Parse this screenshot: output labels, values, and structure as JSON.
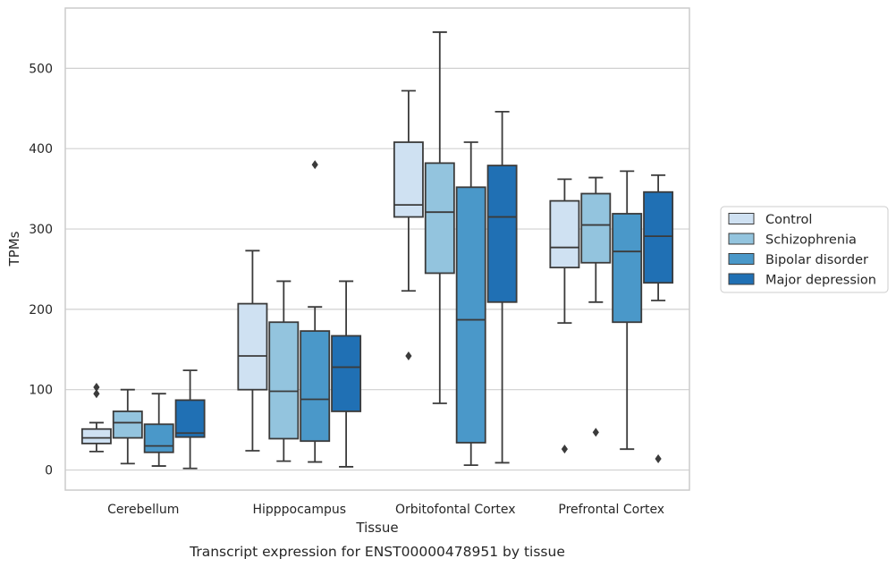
{
  "chart_data": {
    "type": "box",
    "xlabel": "Tissue",
    "ylabel": "TPMs",
    "caption": "Transcript expression for ENST00000478951 by tissue",
    "ylim": [
      -25,
      575
    ],
    "yticks": [
      0,
      100,
      200,
      300,
      400,
      500
    ],
    "grid": "horizontal",
    "legend_position": "right",
    "categories": [
      "Cerebellum",
      "Hipppocampus",
      "Orbitofontal Cortex",
      "Prefrontal Cortex"
    ],
    "series": [
      {
        "name": "Control",
        "color": "#cfe1f2",
        "boxes": [
          {
            "whislo": 23,
            "q1": 33,
            "med": 40,
            "q3": 51,
            "whishi": 59,
            "fliers": [
              95,
              103
            ]
          },
          {
            "whislo": 24,
            "q1": 100,
            "med": 142,
            "q3": 207,
            "whishi": 273,
            "fliers": []
          },
          {
            "whislo": 223,
            "q1": 315,
            "med": 330,
            "q3": 408,
            "whishi": 472,
            "fliers": [
              142
            ]
          },
          {
            "whislo": 183,
            "q1": 252,
            "med": 277,
            "q3": 335,
            "whishi": 362,
            "fliers": [
              26
            ]
          }
        ]
      },
      {
        "name": "Schizophrenia",
        "color": "#93c4de",
        "boxes": [
          {
            "whislo": 8,
            "q1": 40,
            "med": 59,
            "q3": 73,
            "whishi": 100,
            "fliers": []
          },
          {
            "whislo": 11,
            "q1": 39,
            "med": 98,
            "q3": 184,
            "whishi": 235,
            "fliers": []
          },
          {
            "whislo": 83,
            "q1": 245,
            "med": 321,
            "q3": 382,
            "whishi": 545,
            "fliers": []
          },
          {
            "whislo": 209,
            "q1": 258,
            "med": 305,
            "q3": 344,
            "whishi": 364,
            "fliers": [
              47
            ]
          }
        ]
      },
      {
        "name": "Bipolar disorder",
        "color": "#4a98c9",
        "boxes": [
          {
            "whislo": 5,
            "q1": 22,
            "med": 30,
            "q3": 57,
            "whishi": 95,
            "fliers": []
          },
          {
            "whislo": 10,
            "q1": 36,
            "med": 88,
            "q3": 173,
            "whishi": 203,
            "fliers": [
              380
            ]
          },
          {
            "whislo": 6,
            "q1": 34,
            "med": 187,
            "q3": 352,
            "whishi": 408,
            "fliers": []
          },
          {
            "whislo": 26,
            "q1": 184,
            "med": 272,
            "q3": 319,
            "whishi": 372,
            "fliers": []
          }
        ]
      },
      {
        "name": "Major depression",
        "color": "#2070b4",
        "boxes": [
          {
            "whislo": 2,
            "q1": 41,
            "med": 46,
            "q3": 87,
            "whishi": 124,
            "fliers": []
          },
          {
            "whislo": 4,
            "q1": 73,
            "med": 128,
            "q3": 167,
            "whishi": 235,
            "fliers": []
          },
          {
            "whislo": 9,
            "q1": 209,
            "med": 315,
            "q3": 379,
            "whishi": 446,
            "fliers": []
          },
          {
            "whislo": 211,
            "q1": 233,
            "med": 291,
            "q3": 346,
            "whishi": 367,
            "fliers": [
              14
            ]
          }
        ]
      }
    ]
  }
}
